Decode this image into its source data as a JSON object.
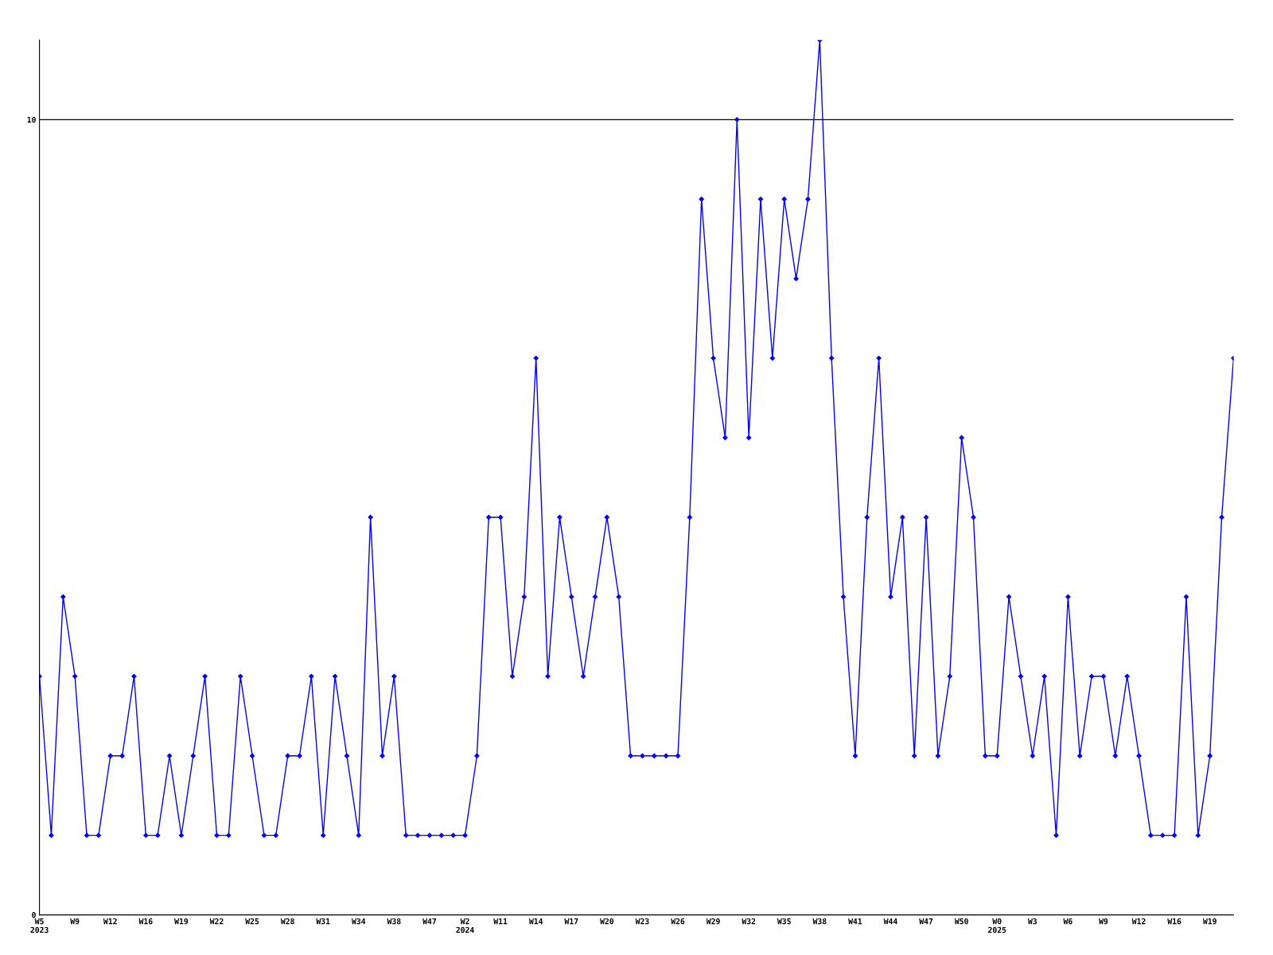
{
  "chart_data": {
    "type": "line",
    "categories": [
      "W5\n2023",
      null,
      null,
      "W9",
      null,
      null,
      "W12",
      null,
      null,
      "W16",
      null,
      null,
      "W19",
      null,
      null,
      "W22",
      null,
      null,
      "W25",
      null,
      null,
      "W28",
      null,
      null,
      "W31",
      null,
      null,
      "W34",
      null,
      null,
      "W38",
      null,
      null,
      "W47",
      null,
      null,
      "W2\n2024",
      null,
      null,
      "W11",
      null,
      null,
      "W14",
      null,
      null,
      "W17",
      null,
      null,
      "W20",
      null,
      null,
      "W23",
      null,
      null,
      "W26",
      null,
      null,
      "W29",
      null,
      null,
      "W32",
      null,
      null,
      "W35",
      null,
      null,
      "W38",
      null,
      null,
      "W41",
      null,
      null,
      "W44",
      null,
      null,
      "W47",
      null,
      null,
      "W50",
      null,
      null,
      "W0\n2025",
      null,
      null,
      "W3",
      null,
      null,
      "W6",
      null,
      null,
      "W9",
      null,
      null,
      "W12",
      null,
      null,
      "W16",
      null,
      null,
      "W19",
      null,
      null
    ],
    "series": [
      {
        "color": "#0000ff",
        "values": [
          3,
          1,
          4,
          3,
          1,
          1,
          2,
          2,
          3,
          1,
          1,
          2,
          1,
          2,
          3,
          1,
          1,
          3,
          2,
          1,
          1,
          2,
          2,
          3,
          1,
          3,
          2,
          1,
          5,
          2,
          3,
          1,
          1,
          1,
          1,
          1,
          1,
          2,
          5,
          5,
          3,
          4,
          7,
          3,
          5,
          4,
          3,
          4,
          5,
          4,
          2,
          2,
          2,
          2,
          2,
          5,
          9,
          7,
          6,
          10,
          6,
          9,
          7,
          9,
          8,
          9,
          11,
          7,
          4,
          2,
          5,
          7,
          4,
          5,
          2,
          5,
          2,
          3,
          6,
          5,
          2,
          2,
          4,
          3,
          2,
          3,
          1,
          4,
          2,
          3,
          3,
          2,
          3,
          2,
          1,
          1,
          1,
          4,
          1,
          2,
          5,
          7
        ]
      }
    ],
    "ylim": [
      0,
      11
    ],
    "yticks": [
      0,
      10
    ],
    "grid": "y",
    "marker": "diamond",
    "line_style": "solid",
    "legend": false
  }
}
